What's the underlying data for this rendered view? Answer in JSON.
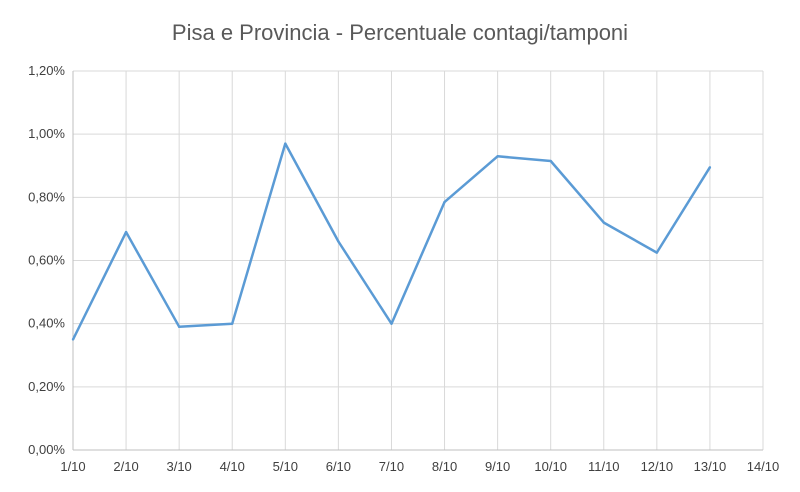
{
  "chart_data": {
    "type": "line",
    "title": "Pisa e Provincia - Percentuale contagi/tamponi",
    "xlabel": "",
    "ylabel": "",
    "categories": [
      "1/10",
      "2/10",
      "3/10",
      "4/10",
      "5/10",
      "6/10",
      "7/10",
      "8/10",
      "9/10",
      "10/10",
      "11/10",
      "12/10",
      "13/10",
      "14/10"
    ],
    "y_ticks": [
      "0,00%",
      "0,20%",
      "0,40%",
      "0,60%",
      "0,80%",
      "1,00%",
      "1,20%"
    ],
    "ylim": [
      0,
      1.2
    ],
    "y_unit": "percent",
    "series": [
      {
        "values": [
          0.35,
          0.69,
          0.39,
          0.4,
          0.97,
          0.66,
          0.4,
          0.785,
          0.93,
          0.915,
          0.72,
          0.625,
          0.895,
          null
        ]
      }
    ],
    "grid": true,
    "legend": "none",
    "colors": {
      "series": "#5b9bd5",
      "grid": "#d9d9d9",
      "text": "#595959"
    }
  }
}
